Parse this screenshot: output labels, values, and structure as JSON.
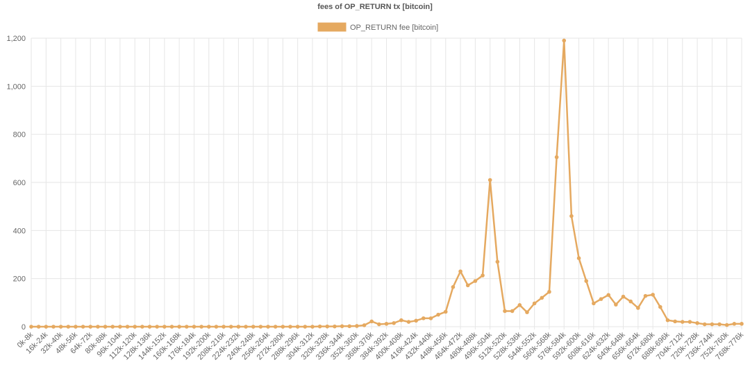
{
  "chart_data": {
    "type": "line",
    "title": "fees of OP_RETURN tx [bitcoin]",
    "categories": [
      "0k-8k",
      null,
      "16k-24k",
      null,
      "32k-40k",
      null,
      "48k-56k",
      null,
      "64k-72k",
      null,
      "80k-88k",
      null,
      "96k-104k",
      null,
      "112k-120k",
      null,
      "128k-136k",
      null,
      "144k-152k",
      null,
      "160k-168k",
      null,
      "176k-184k",
      null,
      "192k-200k",
      null,
      "208k-216k",
      null,
      "224k-232k",
      null,
      "240k-248k",
      null,
      "256k-264k",
      null,
      "272k-280k",
      null,
      "288k-296k",
      null,
      "304k-312k",
      null,
      "320k-328k",
      null,
      "336k-344k",
      null,
      "352k-360k",
      null,
      "368k-376k",
      null,
      "384k-392k",
      null,
      "400k-408k",
      null,
      "416k-424k",
      null,
      "432k-440k",
      null,
      "448k-456k",
      null,
      "464k-472k",
      null,
      "480k-488k",
      null,
      "496k-504k",
      null,
      "512k-520k",
      null,
      "528k-536k",
      null,
      "544k-552k",
      null,
      "560k-568k",
      null,
      "576k-584k",
      null,
      "592k-600k",
      null,
      "608k-616k",
      null,
      "624k-632k",
      null,
      "640k-648k",
      null,
      "656k-664k",
      null,
      "672k-680k",
      null,
      "688k-696k",
      null,
      "704k-712k",
      null,
      "720k-728k",
      null,
      "736k-744k",
      null,
      "752k-760k",
      null,
      "768k-776k"
    ],
    "series": [
      {
        "name": "OP_RETURN fee [bitcoin]",
        "color": "#e5a960",
        "values": [
          0,
          0,
          0,
          0,
          0,
          0,
          0,
          0,
          0,
          0,
          0,
          0,
          0,
          0,
          0,
          0,
          0,
          0,
          0,
          0,
          0,
          0,
          0,
          0,
          0,
          0,
          0,
          0,
          0,
          0,
          0,
          0,
          0,
          0,
          0,
          0,
          0,
          0,
          0,
          1,
          1,
          1,
          2,
          2,
          3,
          6,
          22,
          10,
          12,
          15,
          27,
          20,
          25,
          35,
          35,
          50,
          62,
          165,
          230,
          172,
          190,
          213,
          610,
          270,
          65,
          65,
          90,
          60,
          97,
          120,
          145,
          705,
          1190,
          460,
          285,
          190,
          97,
          115,
          132,
          92,
          125,
          105,
          78,
          128,
          133,
          82,
          27,
          22,
          20,
          20,
          15,
          10,
          10,
          10,
          7,
          12,
          12
        ]
      }
    ],
    "ylim": [
      0,
      1200
    ],
    "yticks": [
      0,
      200,
      400,
      600,
      800,
      {
        "value": 1000,
        "label": "1,000"
      },
      {
        "value": 1200,
        "label": "1,200"
      }
    ],
    "grid": true
  }
}
